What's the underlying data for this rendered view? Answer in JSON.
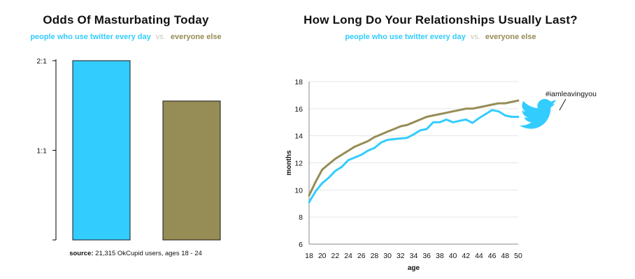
{
  "colors": {
    "twitter": "#33ccff",
    "everyone": "#968c55",
    "vs": "#c8c6b8",
    "axis": "#000000",
    "grid": "#e6e6e6"
  },
  "left": {
    "title": "Odds Of Masturbating Today",
    "legend": {
      "twitter": "people who use twitter every day",
      "vs": "vs.",
      "everyone": "everyone else"
    },
    "source_label": "source:",
    "source_text": "21,315 OkCupid users, ages 18 - 24"
  },
  "right": {
    "title": "How Long Do Your Relationships Usually Last?",
    "legend": {
      "twitter": "people who use twitter every day",
      "vs": "vs.",
      "everyone": "everyone else"
    },
    "annotation": "#iamleavingyou",
    "icon": "twitter-bird-icon"
  },
  "chart_data": [
    {
      "type": "bar",
      "title": "Odds Of Masturbating Today",
      "categories": [
        "people who use twitter every day",
        "everyone else"
      ],
      "values": [
        2.0,
        1.55
      ],
      "ylim": [
        0,
        2
      ],
      "yticks": [
        {
          "value": 1,
          "label": "1:1"
        },
        {
          "value": 2,
          "label": "2:1"
        }
      ],
      "grid": false
    },
    {
      "type": "line",
      "title": "How Long Do Your Relationships Usually Last?",
      "xlabel": "age",
      "ylabel": "months",
      "xlim": [
        18,
        50
      ],
      "ylim": [
        6,
        18
      ],
      "xticks": [
        18,
        20,
        22,
        24,
        26,
        28,
        30,
        32,
        34,
        36,
        38,
        40,
        42,
        44,
        46,
        48,
        50
      ],
      "yticks": [
        6,
        8,
        10,
        12,
        14,
        16,
        18
      ],
      "grid": true,
      "x": [
        18,
        19,
        20,
        21,
        22,
        23,
        24,
        25,
        26,
        27,
        28,
        29,
        30,
        31,
        32,
        33,
        34,
        35,
        36,
        37,
        38,
        39,
        40,
        41,
        42,
        43,
        44,
        45,
        46,
        47,
        48,
        49,
        50
      ],
      "series": [
        {
          "name": "everyone else",
          "values": [
            9.6,
            10.6,
            11.5,
            11.9,
            12.3,
            12.6,
            12.9,
            13.2,
            13.4,
            13.6,
            13.9,
            14.1,
            14.3,
            14.5,
            14.7,
            14.8,
            15.0,
            15.2,
            15.4,
            15.5,
            15.6,
            15.7,
            15.8,
            15.9,
            16.0,
            16.0,
            16.1,
            16.2,
            16.3,
            16.4,
            16.4,
            16.5,
            16.6
          ]
        },
        {
          "name": "people who use twitter every day",
          "values": [
            9.1,
            9.9,
            10.5,
            10.9,
            11.4,
            11.7,
            12.2,
            12.4,
            12.6,
            12.9,
            13.1,
            13.5,
            13.7,
            13.75,
            13.8,
            13.85,
            14.1,
            14.4,
            14.5,
            15.0,
            15.0,
            15.2,
            15.0,
            15.1,
            15.2,
            14.95,
            15.3,
            15.6,
            15.9,
            15.8,
            15.5,
            15.4,
            15.4
          ]
        }
      ]
    }
  ]
}
